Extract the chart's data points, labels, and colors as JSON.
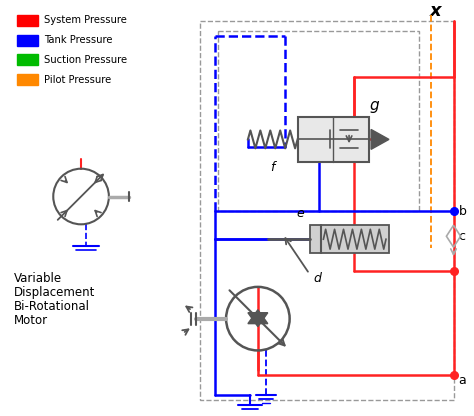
{
  "bg_color": "#ffffff",
  "legend_items": [
    {
      "label": "System Pressure",
      "color": "#ff0000"
    },
    {
      "label": "Tank Pressure",
      "color": "#0000ff"
    },
    {
      "label": "Suction Pressure",
      "color": "#00bb00"
    },
    {
      "label": "Pilot Pressure",
      "color": "#ff8800"
    }
  ],
  "red": "#ff2222",
  "blue": "#0000ff",
  "orange": "#ff8800",
  "dark_gray": "#555555",
  "med_gray": "#888888",
  "light_gray": "#aaaaaa",
  "dashed_gray": "#999999"
}
